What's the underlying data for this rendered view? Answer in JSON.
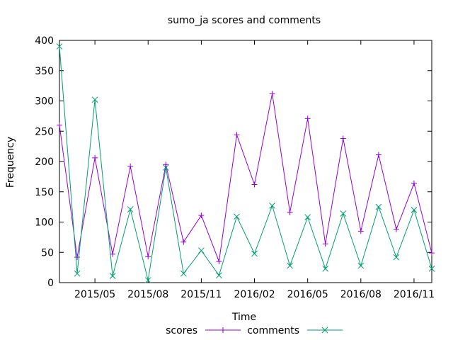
{
  "chart_data": {
    "type": "line",
    "title": "sumo_ja scores and comments",
    "xlabel": "Time",
    "ylabel": "Frequency",
    "ylim": [
      0,
      400
    ],
    "xlim": [
      "2015-03",
      "2016-12"
    ],
    "yticks": [
      0,
      50,
      100,
      150,
      200,
      250,
      300,
      350,
      400
    ],
    "xticks": [
      {
        "x": "2015-05",
        "label": "2015/05"
      },
      {
        "x": "2015-08",
        "label": "2015/08"
      },
      {
        "x": "2015-11",
        "label": "2015/11"
      },
      {
        "x": "2016-02",
        "label": "2016/02"
      },
      {
        "x": "2016-05",
        "label": "2016/05"
      },
      {
        "x": "2016-08",
        "label": "2016/08"
      },
      {
        "x": "2016-11",
        "label": "2016/11"
      }
    ],
    "x": [
      "2015-03",
      "2015-04",
      "2015-05",
      "2015-06",
      "2015-07",
      "2015-08",
      "2015-09",
      "2015-10",
      "2015-11",
      "2015-12",
      "2016-01",
      "2016-02",
      "2016-03",
      "2016-04",
      "2016-05",
      "2016-06",
      "2016-07",
      "2016-08",
      "2016-09",
      "2016-10",
      "2016-11",
      "2016-12"
    ],
    "series": [
      {
        "name": "scores",
        "color": "#9400d3",
        "marker": "plus",
        "values": [
          260,
          42,
          206,
          47,
          192,
          43,
          195,
          67,
          111,
          35,
          244,
          162,
          312,
          116,
          271,
          64,
          238,
          85,
          211,
          88,
          164,
          49
        ]
      },
      {
        "name": "comments",
        "color": "#009e73",
        "marker": "cross",
        "values": [
          390,
          15,
          302,
          11,
          121,
          4,
          190,
          15,
          53,
          12,
          109,
          48,
          127,
          28,
          108,
          23,
          114,
          28,
          125,
          42,
          120,
          23
        ]
      }
    ],
    "grid": false,
    "legend": "bottom-center"
  }
}
